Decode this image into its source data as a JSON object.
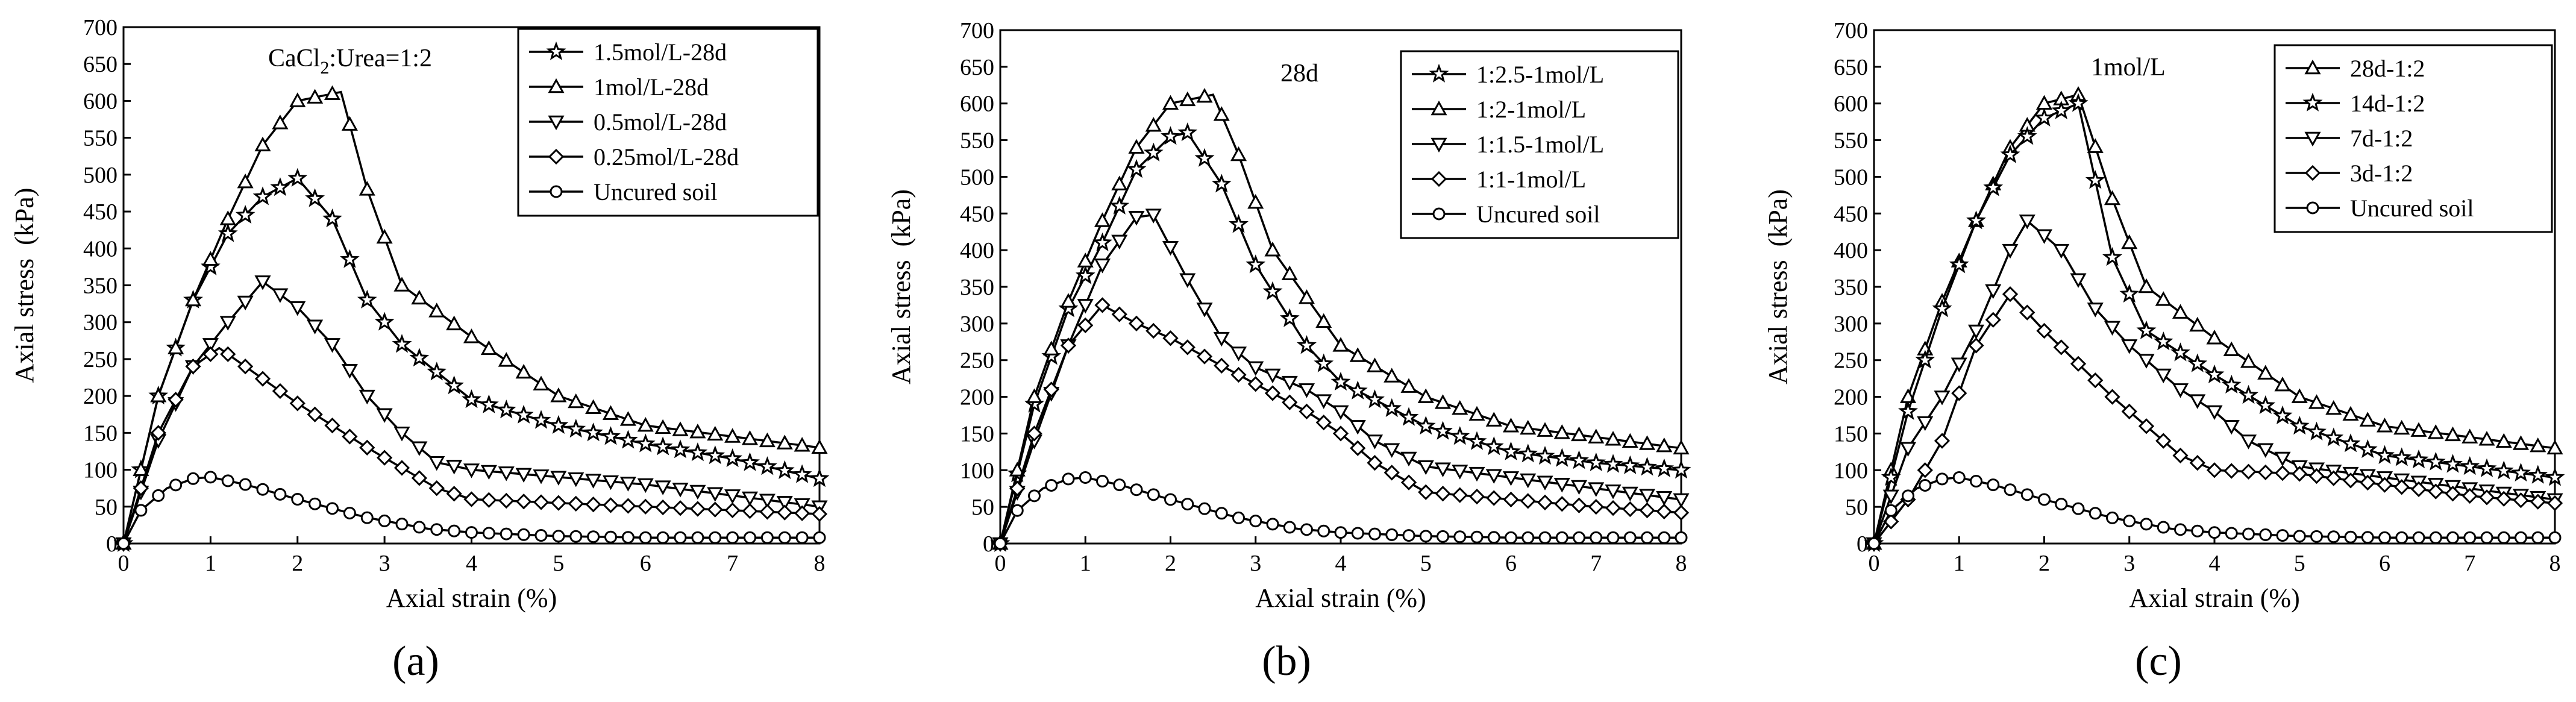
{
  "chart_data": [
    {
      "type": "line",
      "panel_label": "(a)",
      "annotation": {
        "main": "CaCl",
        "sub": "2",
        "rest": ":Urea=1:2"
      },
      "xlabel": "Axial strain (%)",
      "ylabel": "Axial stress  (kPa)",
      "xlim": [
        0,
        8
      ],
      "ylim": [
        0,
        700
      ],
      "xticks": [
        0,
        1,
        2,
        3,
        4,
        5,
        6,
        7,
        8
      ],
      "yticks": [
        0,
        50,
        100,
        150,
        200,
        250,
        300,
        350,
        400,
        450,
        500,
        550,
        600,
        650,
        700
      ],
      "legend_position": "top-right",
      "series": [
        {
          "name": "1.5mol/L-28d",
          "marker": "star",
          "points": [
            [
              0,
              0
            ],
            [
              0.4,
              200
            ],
            [
              0.8,
              330
            ],
            [
              1.2,
              420
            ],
            [
              1.6,
              470
            ],
            [
              2.0,
              495
            ],
            [
              2.4,
              440
            ],
            [
              2.8,
              330
            ],
            [
              3.2,
              270
            ],
            [
              4.0,
              195
            ],
            [
              5.0,
              160
            ],
            [
              6.0,
              135
            ],
            [
              7.0,
              115
            ],
            [
              8.0,
              88
            ]
          ]
        },
        {
          "name": "1mol/L-28d",
          "marker": "triangle-up",
          "points": [
            [
              0,
              0
            ],
            [
              0.4,
              200
            ],
            [
              0.8,
              330
            ],
            [
              1.2,
              440
            ],
            [
              1.6,
              540
            ],
            [
              2.0,
              600
            ],
            [
              2.5,
              612
            ],
            [
              2.8,
              480
            ],
            [
              3.2,
              350
            ],
            [
              4.0,
              280
            ],
            [
              5.0,
              200
            ],
            [
              6.0,
              160
            ],
            [
              7.0,
              145
            ],
            [
              8.0,
              130
            ]
          ]
        },
        {
          "name": "0.5mol/L-28d",
          "marker": "triangle-down",
          "points": [
            [
              0,
              0
            ],
            [
              0.4,
              140
            ],
            [
              0.8,
              240
            ],
            [
              1.2,
              300
            ],
            [
              1.6,
              355
            ],
            [
              2.0,
              320
            ],
            [
              2.4,
              270
            ],
            [
              2.8,
              200
            ],
            [
              3.2,
              150
            ],
            [
              3.6,
              110
            ],
            [
              4.0,
              100
            ],
            [
              5.0,
              90
            ],
            [
              6.0,
              80
            ],
            [
              7.0,
              65
            ],
            [
              8.0,
              50
            ]
          ]
        },
        {
          "name": "0.25mol/L-28d",
          "marker": "diamond",
          "points": [
            [
              0,
              0
            ],
            [
              0.4,
              150
            ],
            [
              0.8,
              240
            ],
            [
              1.1,
              265
            ],
            [
              1.4,
              240
            ],
            [
              2.0,
              190
            ],
            [
              2.8,
              130
            ],
            [
              3.6,
              75
            ],
            [
              4.0,
              60
            ],
            [
              5.0,
              55
            ],
            [
              6.0,
              50
            ],
            [
              7.0,
              45
            ],
            [
              8.0,
              40
            ]
          ]
        },
        {
          "name": "Uncured soil",
          "marker": "circle",
          "points": [
            [
              0,
              0
            ],
            [
              0.2,
              45
            ],
            [
              0.5,
              75
            ],
            [
              0.8,
              88
            ],
            [
              1.0,
              90
            ],
            [
              1.4,
              80
            ],
            [
              2.0,
              60
            ],
            [
              2.8,
              35
            ],
            [
              3.5,
              20
            ],
            [
              4.0,
              15
            ],
            [
              5.0,
              10
            ],
            [
              6.0,
              8
            ],
            [
              7.0,
              8
            ],
            [
              8.0,
              8
            ]
          ]
        }
      ]
    },
    {
      "type": "line",
      "panel_label": "(b)",
      "annotation": {
        "main": "28d",
        "sub": "",
        "rest": ""
      },
      "xlabel": "Axial strain (%)",
      "ylabel": "Axial stress  (kPa)",
      "xlim": [
        0,
        8
      ],
      "ylim": [
        0,
        700
      ],
      "xticks": [
        0,
        1,
        2,
        3,
        4,
        5,
        6,
        7,
        8
      ],
      "yticks": [
        0,
        50,
        100,
        150,
        200,
        250,
        300,
        350,
        400,
        450,
        500,
        550,
        600,
        650,
        700
      ],
      "legend_position": "top-right",
      "series": [
        {
          "name": "1:2.5-1mol/L",
          "marker": "star",
          "points": [
            [
              0,
              0
            ],
            [
              0.4,
              190
            ],
            [
              0.8,
              320
            ],
            [
              1.2,
              410
            ],
            [
              1.6,
              510
            ],
            [
              2.0,
              555
            ],
            [
              2.2,
              560
            ],
            [
              2.6,
              490
            ],
            [
              3.0,
              380
            ],
            [
              3.6,
              270
            ],
            [
              4.0,
              220
            ],
            [
              5.0,
              160
            ],
            [
              6.0,
              125
            ],
            [
              7.0,
              110
            ],
            [
              8.0,
              100
            ]
          ]
        },
        {
          "name": "1:2-1mol/L",
          "marker": "triangle-up",
          "points": [
            [
              0,
              0
            ],
            [
              0.4,
              200
            ],
            [
              0.8,
              330
            ],
            [
              1.2,
              440
            ],
            [
              1.6,
              540
            ],
            [
              2.0,
              600
            ],
            [
              2.5,
              612
            ],
            [
              2.8,
              530
            ],
            [
              3.2,
              400
            ],
            [
              4.0,
              270
            ],
            [
              5.0,
              200
            ],
            [
              6.0,
              160
            ],
            [
              7.0,
              145
            ],
            [
              8.0,
              130
            ]
          ]
        },
        {
          "name": "1:1.5-1mol/L",
          "marker": "triangle-down",
          "points": [
            [
              0,
              0
            ],
            [
              0.4,
              140
            ],
            [
              0.8,
              270
            ],
            [
              1.2,
              380
            ],
            [
              1.6,
              445
            ],
            [
              1.8,
              448
            ],
            [
              2.2,
              360
            ],
            [
              2.6,
              280
            ],
            [
              3.0,
              240
            ],
            [
              3.6,
              210
            ],
            [
              4.0,
              180
            ],
            [
              4.4,
              140
            ],
            [
              5.0,
              105
            ],
            [
              6.0,
              90
            ],
            [
              7.0,
              75
            ],
            [
              8.0,
              60
            ]
          ]
        },
        {
          "name": "1:1-1mol/L",
          "marker": "diamond",
          "points": [
            [
              0,
              0
            ],
            [
              0.4,
              150
            ],
            [
              0.8,
              270
            ],
            [
              1.2,
              325
            ],
            [
              1.6,
              300
            ],
            [
              2.0,
              280
            ],
            [
              2.8,
              230
            ],
            [
              3.6,
              180
            ],
            [
              4.0,
              150
            ],
            [
              4.4,
              110
            ],
            [
              5.0,
              70
            ],
            [
              6.0,
              60
            ],
            [
              7.0,
              50
            ],
            [
              8.0,
              42
            ]
          ]
        },
        {
          "name": "Uncured soil",
          "marker": "circle",
          "points": [
            [
              0,
              0
            ],
            [
              0.2,
              45
            ],
            [
              0.5,
              75
            ],
            [
              0.8,
              88
            ],
            [
              1.0,
              90
            ],
            [
              1.4,
              80
            ],
            [
              2.0,
              60
            ],
            [
              2.8,
              35
            ],
            [
              3.5,
              20
            ],
            [
              4.0,
              15
            ],
            [
              5.0,
              10
            ],
            [
              6.0,
              8
            ],
            [
              7.0,
              8
            ],
            [
              8.0,
              8
            ]
          ]
        }
      ]
    },
    {
      "type": "line",
      "panel_label": "(c)",
      "annotation": {
        "main": "1mol/L",
        "sub": "",
        "rest": ""
      },
      "xlabel": "Axial strain (%)",
      "ylabel": "Axial stress  (kPa)",
      "xlim": [
        0,
        8
      ],
      "ylim": [
        0,
        700
      ],
      "xticks": [
        0,
        1,
        2,
        3,
        4,
        5,
        6,
        7,
        8
      ],
      "yticks": [
        0,
        50,
        100,
        150,
        200,
        250,
        300,
        350,
        400,
        450,
        500,
        550,
        600,
        650,
        700
      ],
      "legend_position": "top-right",
      "series": [
        {
          "name": "28d-1:2",
          "marker": "triangle-up",
          "points": [
            [
              0,
              0
            ],
            [
              0.4,
              200
            ],
            [
              0.8,
              330
            ],
            [
              1.2,
              440
            ],
            [
              1.6,
              540
            ],
            [
              2.0,
              600
            ],
            [
              2.4,
              612
            ],
            [
              2.8,
              470
            ],
            [
              3.2,
              350
            ],
            [
              4.0,
              280
            ],
            [
              5.0,
              200
            ],
            [
              6.0,
              160
            ],
            [
              7.0,
              145
            ],
            [
              8.0,
              130
            ]
          ]
        },
        {
          "name": "14d-1:2",
          "marker": "star",
          "points": [
            [
              0,
              0
            ],
            [
              0.4,
              180
            ],
            [
              0.8,
              320
            ],
            [
              1.2,
              440
            ],
            [
              1.6,
              530
            ],
            [
              2.0,
              580
            ],
            [
              2.4,
              600
            ],
            [
              2.8,
              390
            ],
            [
              3.2,
              290
            ],
            [
              4.0,
              230
            ],
            [
              5.0,
              160
            ],
            [
              6.0,
              120
            ],
            [
              7.0,
              105
            ],
            [
              8.0,
              90
            ]
          ]
        },
        {
          "name": "7d-1:2",
          "marker": "triangle-down",
          "points": [
            [
              0,
              0
            ],
            [
              0.4,
              130
            ],
            [
              0.8,
              200
            ],
            [
              1.2,
              290
            ],
            [
              1.6,
              400
            ],
            [
              1.8,
              440
            ],
            [
              2.2,
              400
            ],
            [
              2.6,
              320
            ],
            [
              3.0,
              270
            ],
            [
              3.6,
              210
            ],
            [
              4.0,
              180
            ],
            [
              4.4,
              140
            ],
            [
              5.0,
              105
            ],
            [
              6.0,
              90
            ],
            [
              7.0,
              75
            ],
            [
              8.0,
              60
            ]
          ]
        },
        {
          "name": "3d-1:2",
          "marker": "diamond",
          "points": [
            [
              0,
              0
            ],
            [
              0.4,
              60
            ],
            [
              0.8,
              140
            ],
            [
              1.2,
              270
            ],
            [
              1.6,
              340
            ],
            [
              2.0,
              290
            ],
            [
              2.8,
              200
            ],
            [
              3.6,
              120
            ],
            [
              4.0,
              100
            ],
            [
              5.0,
              95
            ],
            [
              6.0,
              80
            ],
            [
              7.0,
              65
            ],
            [
              8.0,
              55
            ]
          ]
        },
        {
          "name": "Uncured soil",
          "marker": "circle",
          "points": [
            [
              0,
              0
            ],
            [
              0.2,
              45
            ],
            [
              0.5,
              75
            ],
            [
              0.8,
              88
            ],
            [
              1.0,
              90
            ],
            [
              1.4,
              80
            ],
            [
              2.0,
              60
            ],
            [
              2.8,
              35
            ],
            [
              3.5,
              20
            ],
            [
              4.0,
              15
            ],
            [
              5.0,
              10
            ],
            [
              6.0,
              8
            ],
            [
              7.0,
              8
            ],
            [
              8.0,
              8
            ]
          ]
        }
      ]
    }
  ]
}
